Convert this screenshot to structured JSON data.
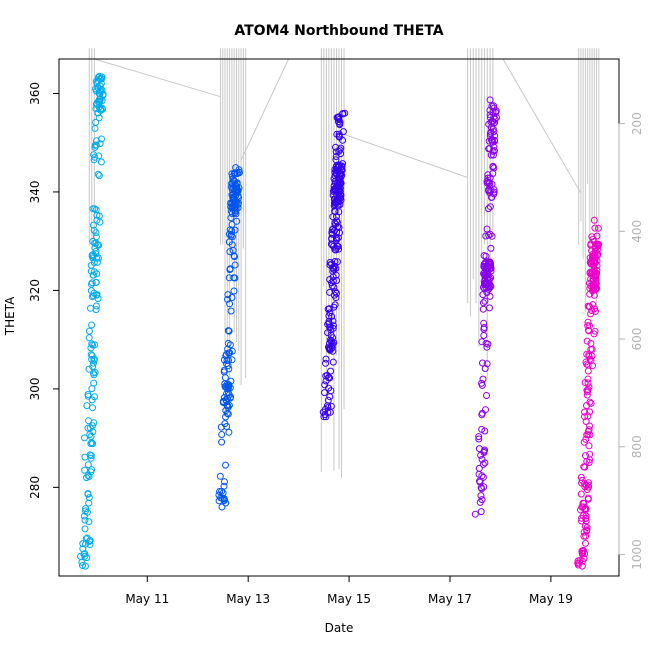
{
  "chart_data": {
    "type": "scatter",
    "title": "ATOM4 Northbound THETA",
    "xlabel": "Date",
    "ylabel": "THETA",
    "x_ticks": [
      "May 11",
      "May 13",
      "May 15",
      "May 17",
      "May 19"
    ],
    "x_tick_days": [
      11,
      13,
      15,
      17,
      19
    ],
    "xlim_days": [
      9.25,
      20.35
    ],
    "ylim": [
      262,
      367
    ],
    "y_ticks": [
      280,
      300,
      320,
      340,
      360
    ],
    "y2_ticks": [
      200,
      400,
      600,
      800,
      1000
    ],
    "y2lim": [
      1040,
      80
    ],
    "y2_reversed": true,
    "grid": false,
    "point_color_scale": [
      "#00aaee",
      "#0055ee",
      "#3300ee",
      "#8800ee",
      "#ee00cc"
    ],
    "line_color": "#c8c8c8",
    "series": [
      {
        "color": "#00aaee",
        "casts": [
          {
            "x_day": 9.92,
            "theta_range": [
              264,
              364
            ],
            "n": 140,
            "dense_top": [
              355,
              364
            ]
          },
          {
            "x_day": 9.87,
            "theta_range": [
              264,
              335
            ],
            "n": 40,
            "dense_top": [
              325,
              333
            ]
          }
        ]
      },
      {
        "color": "#0055ee",
        "casts": [
          {
            "x_day": 12.62,
            "theta_range": [
              276,
              345
            ],
            "n": 170,
            "dense_top": [
              335,
              345
            ],
            "dense_bottom": [
              296,
              306
            ]
          }
        ]
      },
      {
        "color": "#3300ee",
        "casts": [
          {
            "x_day": 14.7,
            "theta_range": [
              294,
              356
            ],
            "n": 230,
            "dense_top": [
              337,
              346
            ]
          }
        ]
      },
      {
        "color": "#8800ee",
        "casts": [
          {
            "x_day": 17.72,
            "theta_range": [
              274,
              359
            ],
            "n": 190,
            "dense_top": [
              320,
              326
            ],
            "top_branch": [
              338,
              359
            ]
          }
        ]
      },
      {
        "color": "#ee00cc",
        "casts": [
          {
            "x_day": 19.75,
            "theta_range": [
              264,
              335
            ],
            "n": 200,
            "dense_top": [
              320,
              330
            ]
          }
        ]
      }
    ],
    "pressure_lines": [
      {
        "x_day_from": 9.95,
        "x_day_to": 12.45,
        "p_from": 80,
        "p_to": 150
      },
      {
        "x_day_from": 12.85,
        "x_day_to": 13.8,
        "p_from": 270,
        "p_to": 80
      },
      {
        "x_day_from": 14.9,
        "x_day_to": 17.35,
        "p_from": 220,
        "p_to": 300
      },
      {
        "x_day_from": 18.05,
        "x_day_to": 19.6,
        "p_from": 80,
        "p_to": 330
      }
    ],
    "profile_bundles": [
      {
        "x_day_from": 12.45,
        "x_day_to": 12.95,
        "p_max": 760,
        "n": 12
      },
      {
        "x_day_from": 14.45,
        "x_day_to": 14.9,
        "p_max": 860,
        "n": 10
      },
      {
        "x_day_from": 17.35,
        "x_day_to": 17.85,
        "p_max": 720,
        "n": 10
      },
      {
        "x_day_from": 19.55,
        "x_day_to": 19.95,
        "p_max": 560,
        "n": 10
      },
      {
        "x_day_from": 9.85,
        "x_day_to": 9.95,
        "p_max": 500,
        "n": 3
      }
    ]
  }
}
